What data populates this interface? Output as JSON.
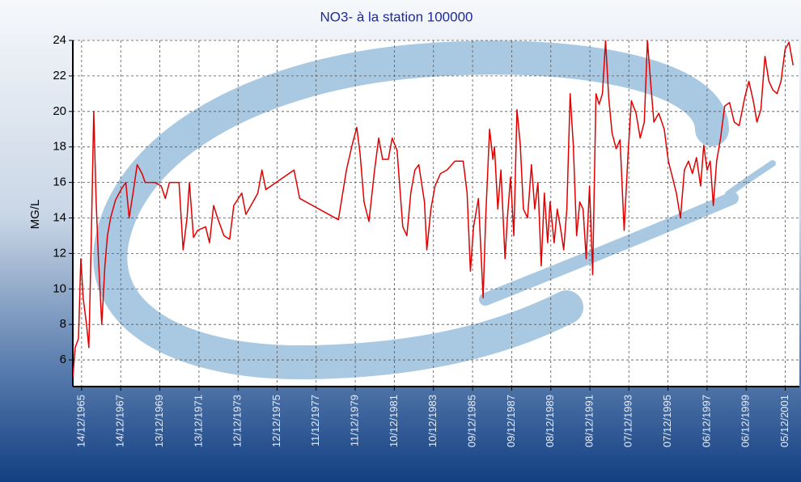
{
  "chart_data": {
    "type": "line",
    "title": "NO3- à la station 100000",
    "y_label": "MG/L",
    "color": "#e00000",
    "grid": true,
    "xlim": [
      1965.5,
      2002.65
    ],
    "ylim": [
      4.5,
      24
    ],
    "yticks": [
      6,
      8,
      10,
      12,
      14,
      16,
      18,
      20,
      22,
      24
    ],
    "xticks": [
      {
        "value": 1965.95,
        "label": "14/12/1965"
      },
      {
        "value": 1967.95,
        "label": "14/12/1967"
      },
      {
        "value": 1969.95,
        "label": "13/12/1969"
      },
      {
        "value": 1971.95,
        "label": "13/12/1971"
      },
      {
        "value": 1973.95,
        "label": "12/12/1973"
      },
      {
        "value": 1975.95,
        "label": "12/12/1975"
      },
      {
        "value": 1977.94,
        "label": "11/12/1977"
      },
      {
        "value": 1979.94,
        "label": "11/12/1979"
      },
      {
        "value": 1981.94,
        "label": "10/12/1981"
      },
      {
        "value": 1983.94,
        "label": "10/12/1983"
      },
      {
        "value": 1985.94,
        "label": "09/12/1985"
      },
      {
        "value": 1987.94,
        "label": "09/12/1987"
      },
      {
        "value": 1989.94,
        "label": "08/12/1989"
      },
      {
        "value": 1991.94,
        "label": "08/12/1991"
      },
      {
        "value": 1993.93,
        "label": "07/12/1993"
      },
      {
        "value": 1995.93,
        "label": "07/12/1995"
      },
      {
        "value": 1997.93,
        "label": "06/12/1997"
      },
      {
        "value": 1999.93,
        "label": "06/12/1999"
      },
      {
        "value": 2001.93,
        "label": "05/12/2001"
      }
    ],
    "x": [
      1965.5,
      1965.62,
      1965.79,
      1965.91,
      1966.03,
      1966.2,
      1966.32,
      1966.44,
      1966.57,
      1966.69,
      1966.81,
      1966.98,
      1967.14,
      1967.27,
      1967.43,
      1967.68,
      1967.97,
      1968.21,
      1968.38,
      1968.58,
      1968.79,
      1969.04,
      1969.2,
      1969.69,
      1970.02,
      1970.23,
      1970.44,
      1970.76,
      1970.93,
      1971.14,
      1971.34,
      1971.46,
      1971.67,
      1971.88,
      1972.29,
      1972.49,
      1972.7,
      1972.9,
      1973.23,
      1973.52,
      1973.73,
      1974.14,
      1974.35,
      1974.76,
      1974.96,
      1975.17,
      1975.37,
      1976.81,
      1977.1,
      1979.08,
      1979.49,
      1979.78,
      1980.02,
      1980.19,
      1980.39,
      1980.64,
      1980.93,
      1981.14,
      1981.34,
      1981.63,
      1981.83,
      1982.08,
      1982.37,
      1982.58,
      1982.78,
      1982.99,
      1983.19,
      1983.48,
      1983.6,
      1983.81,
      1984.02,
      1984.3,
      1984.63,
      1985.04,
      1985.46,
      1985.66,
      1985.83,
      1985.99,
      1986.24,
      1986.48,
      1986.61,
      1986.81,
      1986.98,
      1987.06,
      1987.23,
      1987.39,
      1987.6,
      1987.72,
      1987.88,
      1988.05,
      1988.21,
      1988.38,
      1988.54,
      1988.75,
      1988.95,
      1989.12,
      1989.28,
      1989.45,
      1989.61,
      1989.78,
      1989.9,
      1990.11,
      1990.27,
      1990.44,
      1990.6,
      1990.76,
      1990.93,
      1991.09,
      1991.26,
      1991.42,
      1991.59,
      1991.75,
      1991.92,
      1992.08,
      1992.25,
      1992.41,
      1992.58,
      1992.74,
      1992.9,
      1993.07,
      1993.28,
      1993.48,
      1993.69,
      1993.89,
      1994.06,
      1994.3,
      1994.51,
      1994.72,
      1994.88,
      1995.04,
      1995.21,
      1995.46,
      1995.74,
      1995.95,
      1996.16,
      1996.36,
      1996.57,
      1996.77,
      1996.98,
      1997.18,
      1997.39,
      1997.6,
      1997.76,
      1997.93,
      1998.09,
      1998.25,
      1998.42,
      1998.62,
      1998.83,
      1999.08,
      1999.32,
      1999.57,
      1999.86,
      2000.07,
      2000.31,
      2000.48,
      2000.68,
      2000.89,
      2001.09,
      2001.3,
      2001.51,
      2001.71,
      2001.92,
      2002.12,
      2002.33
    ],
    "values": [
      5,
      6.7,
      7.2,
      11.7,
      9.5,
      8,
      6.7,
      12.6,
      20,
      15,
      11.7,
      8,
      11.3,
      13,
      14,
      15,
      15.6,
      16,
      14,
      15.4,
      17,
      16.5,
      16,
      16,
      15.8,
      15.1,
      16,
      16,
      16,
      12.2,
      14,
      16,
      12.9,
      13.3,
      13.5,
      12.6,
      14.7,
      14,
      13,
      12.8,
      14.7,
      15.4,
      14.2,
      15,
      15.4,
      16.7,
      15.6,
      16.7,
      15.1,
      13.9,
      16.7,
      18.1,
      19.1,
      17.6,
      14.9,
      13.8,
      16.7,
      18.5,
      17.3,
      17.3,
      18.5,
      17.8,
      13.5,
      13,
      15.4,
      16.7,
      17,
      14.9,
      12.2,
      14.5,
      15.8,
      16.5,
      16.7,
      17.2,
      17.2,
      15.4,
      11,
      13.5,
      15.1,
      9.5,
      14,
      19,
      17.3,
      18,
      14.5,
      16.7,
      11.7,
      14,
      16.3,
      13,
      20.1,
      18.1,
      14.5,
      14,
      17,
      14.5,
      16,
      11.3,
      15.4,
      12.6,
      14.9,
      12.6,
      14.5,
      13.4,
      12.2,
      14.5,
      21,
      18.1,
      13,
      14.9,
      14.5,
      11.7,
      15.8,
      10.8,
      21,
      20.4,
      21,
      24,
      20.8,
      18.8,
      17.9,
      18.4,
      13.3,
      17.6,
      20.6,
      19.9,
      18.5,
      19.4,
      24,
      21.7,
      19.4,
      19.9,
      19,
      17.2,
      16.3,
      15.4,
      14,
      16.7,
      17.2,
      16.5,
      17.4,
      15.8,
      18.1,
      16.7,
      17.2,
      14.7,
      17.2,
      18.5,
      20.3,
      20.5,
      19.4,
      19.2,
      20.8,
      21.7,
      20.5,
      19.4,
      20.1,
      23.1,
      21.7,
      21.2,
      21,
      21.7,
      23.5,
      23.9,
      22.6
    ]
  }
}
